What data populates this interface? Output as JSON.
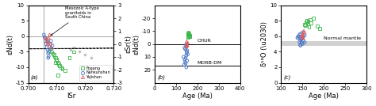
{
  "chart_data": [
    {
      "type": "scatter",
      "x_label": "ISr",
      "y_label": "εNd(t)",
      "y2label": "εSr(t)",
      "xlim": [
        0.7,
        0.73
      ],
      "ylim": [
        -15,
        10
      ],
      "xticks": [
        {
          "value": 0.7,
          "label": "0.700"
        },
        {
          "value": 0.71,
          "label": "0.710"
        },
        {
          "value": 0.72,
          "label": "0.720"
        },
        {
          "value": 0.73,
          "label": "0.730"
        }
      ],
      "yticks": [
        -15,
        -10,
        -5,
        0,
        5,
        10
      ],
      "y2lim": [
        -3,
        3
      ],
      "y2ticks": [
        -3,
        -2,
        -1,
        0,
        1,
        2,
        3
      ],
      "hlines": [
        0
      ],
      "vlines": [
        0.7055
      ],
      "ellipse": {
        "center": [
          0.7085,
          -4.0
        ],
        "width": 0.0115,
        "height": 11.0,
        "angle": -8,
        "line_style": "dashed"
      },
      "series": [
        {
          "color": "#aaaaaa",
          "marker": "circle",
          "x": [
            0.715,
            0.718,
            0.72,
            0.716,
            0.722
          ],
          "values": [
            -4.5,
            -5.0,
            -6.0,
            -3.5,
            -7.0
          ]
        },
        {
          "name": "Fogang",
          "color": "#3cb54a",
          "marker": "square",
          "x": [
            0.7078,
            0.7082,
            0.7085,
            0.709,
            0.7092,
            0.7095,
            0.7098,
            0.71,
            0.7105,
            0.7108,
            0.711,
            0.7115,
            0.712,
            0.713,
            0.7145,
            0.716,
            0.7095,
            0.7105
          ],
          "values": [
            -4.0,
            -5.0,
            -5.5,
            -6.0,
            -6.5,
            -7.0,
            -7.5,
            -8.0,
            -8.5,
            -9.0,
            -9.5,
            -10.0,
            -10.5,
            -11.0,
            -7.0,
            -5.0,
            -8.5,
            -12.5
          ]
        },
        {
          "name": "Nankunshan",
          "color": "#4472c4",
          "marker": "circle",
          "x": [
            0.7055,
            0.7058,
            0.706,
            0.7062,
            0.7065,
            0.7068,
            0.707,
            0.7072,
            0.7075,
            0.7078,
            0.708,
            0.7082,
            0.7085,
            0.707,
            0.7072,
            0.7068,
            0.7065,
            0.706
          ],
          "values": [
            0.5,
            -0.5,
            -1.5,
            -2.5,
            -3.5,
            -4.5,
            -5.5,
            -6.5,
            -3.5,
            -2.5,
            -1.5,
            -4.0,
            -3.0,
            -7.0,
            -5.0,
            -2.0,
            -1.0,
            -0.5
          ]
        },
        {
          "name": "Yajishan",
          "color": "#e05c5c",
          "marker": "triangle",
          "x": [
            0.706,
            0.7065,
            0.7068,
            0.707,
            0.7072,
            0.7075,
            0.7078,
            0.708
          ],
          "values": [
            -0.5,
            -1.5,
            -2.5,
            -1.5,
            -0.5,
            0.5,
            -2.5,
            -3.5
          ]
        }
      ],
      "legend": "lower right",
      "annotations": [
        {
          "text": "Mesozoic A-type\ngranitoids in\nSouth China",
          "xy": [
            0.7072,
            -0.2
          ],
          "xytext": [
            0.713,
            5.5
          ]
        },
        {
          "text": "(a)"
        }
      ]
    },
    {
      "type": "scatter",
      "x_label": "Age (Ma)",
      "y_label": "εNd(t)",
      "xlim": [
        0,
        400
      ],
      "ylim": [
        30,
        -30
      ],
      "xticks": [
        0,
        100,
        200,
        300,
        400
      ],
      "yticks": [
        20,
        10,
        0,
        -10,
        -20
      ],
      "hlines": [
        {
          "value": 17,
          "label": "MORB-DM"
        },
        {
          "value": 0,
          "label": "CHUR"
        }
      ],
      "series": [
        {
          "name": "Fogang",
          "color": "#3cb54a",
          "marker": "square",
          "x": [
            155,
            158,
            160,
            162,
            165,
            160,
            157,
            163,
            155,
            165,
            162,
            158
          ],
          "values": [
            -5,
            -6,
            -7,
            -8,
            -6.5,
            -7.5,
            -8.5,
            -5.5,
            -7,
            -6,
            -8,
            -9
          ]
        },
        {
          "name": "Nankunshan",
          "color": "#4472c4",
          "marker": "circle",
          "x": [
            135,
            140,
            143,
            145,
            148,
            150,
            152,
            155,
            145,
            148,
            150,
            140,
            143,
            145,
            148,
            150,
            152,
            138
          ],
          "values": [
            10,
            12,
            14,
            11,
            9,
            7,
            13,
            8,
            1,
            2,
            0,
            3,
            4,
            15,
            18,
            6,
            5,
            16
          ]
        },
        {
          "name": "Yajishan",
          "color": "#e05c5c",
          "marker": "triangle",
          "x": [
            150,
            152,
            155,
            148,
            150,
            153
          ],
          "values": [
            0,
            1,
            -1,
            2,
            -2,
            1
          ]
        }
      ],
      "annotations": [
        {
          "text": "(b)"
        }
      ]
    },
    {
      "type": "scatter",
      "x_label": "Age (Ma)",
      "y_label": "δ¹⁸O (\\u2030)",
      "xlim": [
        100,
        300
      ],
      "ylim": [
        0,
        10
      ],
      "xticks": [
        100,
        150,
        200,
        250,
        300
      ],
      "yticks": [
        0,
        2,
        4,
        6,
        8,
        10
      ],
      "bands": [
        {
          "from": 4.8,
          "to": 5.4,
          "label": "Normal mantle"
        }
      ],
      "series": [
        {
          "name": "Fogang",
          "color": "#3cb54a",
          "marker": "square",
          "x": [
            155,
            158,
            160,
            162,
            165,
            163,
            157,
            168,
            170,
            185,
            190,
            175
          ],
          "values": [
            7.5,
            7.8,
            8.0,
            7.6,
            7.2,
            7.9,
            7.4,
            8.1,
            7.7,
            7.3,
            7.0,
            8.3
          ]
        },
        {
          "name": "Nankunshan",
          "color": "#4472c4",
          "marker": "circle",
          "x": [
            138,
            140,
            143,
            145,
            148,
            150,
            152,
            155,
            145,
            148,
            143,
            150,
            155,
            145,
            148,
            150,
            152,
            140,
            145
          ],
          "values": [
            5.8,
            6.0,
            6.2,
            5.5,
            5.7,
            5.9,
            5.4,
            6.1,
            4.9,
            5.1,
            5.3,
            5.0,
            5.2,
            6.3,
            5.6,
            6.5,
            6.0,
            5.8,
            4.8
          ]
        },
        {
          "name": "Yajishan",
          "color": "#e05c5c",
          "marker": "triangle",
          "x": [
            148,
            150,
            152,
            155,
            148,
            150,
            153
          ],
          "values": [
            6.0,
            6.2,
            5.8,
            6.5,
            5.9,
            6.3,
            6.7
          ]
        }
      ],
      "annotations": [
        {
          "text": "(c)"
        }
      ]
    }
  ]
}
